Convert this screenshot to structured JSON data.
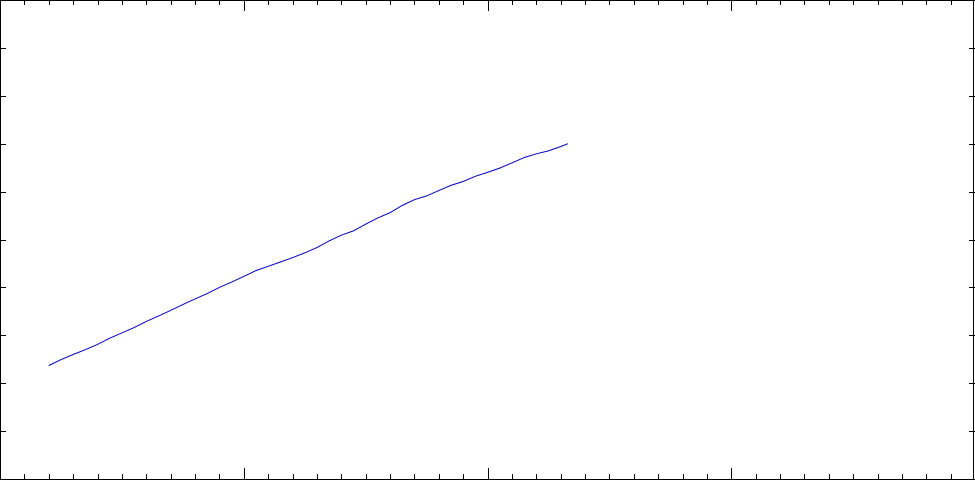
{
  "colors": {
    "background": "#ffffff",
    "frame": "#000000",
    "series": "#0000cc"
  },
  "chart_data": {
    "type": "line",
    "title": "",
    "xlabel": "",
    "ylabel": "",
    "xlim": [
      0,
      40
    ],
    "ylim": [
      0,
      10
    ],
    "grid": false,
    "x_ticks": {
      "major": [
        0,
        10,
        20,
        30,
        40
      ],
      "minor_step": 1
    },
    "y_ticks": {
      "major": [
        0,
        1,
        2,
        3,
        4,
        5,
        6,
        7,
        8,
        9,
        10
      ]
    },
    "series": [
      {
        "color": "#0000cc",
        "x": [
          2.0,
          2.5,
          3.0,
          3.5,
          4.0,
          4.5,
          5.0,
          5.5,
          6.0,
          6.5,
          7.0,
          7.5,
          8.0,
          8.5,
          9.0,
          9.5,
          10.0,
          10.5,
          11.0,
          11.5,
          12.0,
          12.5,
          13.0,
          13.5,
          14.0,
          14.5,
          15.0,
          15.5,
          16.0,
          16.5,
          17.0,
          17.5,
          18.0,
          18.5,
          19.0,
          19.5,
          20.0,
          20.5,
          21.0,
          21.5,
          22.0,
          22.5,
          23.0,
          23.3
        ],
        "y": [
          2.37,
          2.49,
          2.6,
          2.7,
          2.81,
          2.94,
          3.05,
          3.16,
          3.29,
          3.4,
          3.52,
          3.64,
          3.76,
          3.87,
          4.0,
          4.11,
          4.23,
          4.35,
          4.44,
          4.53,
          4.62,
          4.72,
          4.83,
          4.97,
          5.09,
          5.18,
          5.32,
          5.45,
          5.56,
          5.71,
          5.83,
          5.91,
          6.02,
          6.13,
          6.21,
          6.32,
          6.4,
          6.49,
          6.6,
          6.71,
          6.79,
          6.85,
          6.94,
          7.0
        ]
      }
    ]
  }
}
